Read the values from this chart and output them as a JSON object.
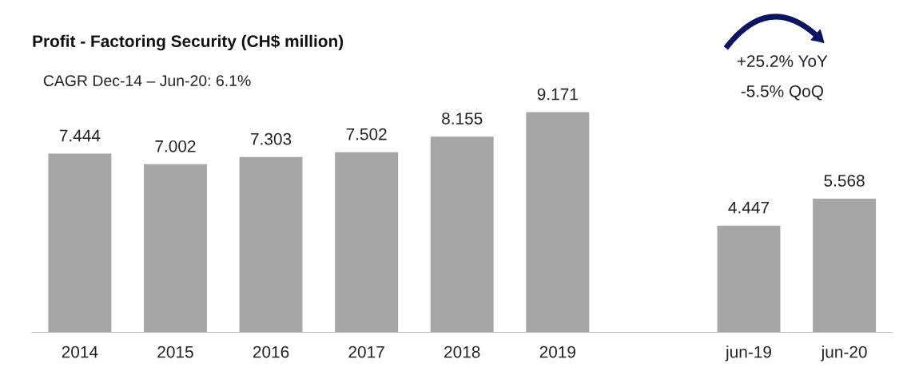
{
  "chart_data": {
    "type": "bar",
    "title": "Profit - Factoring Security (CH$ million)",
    "categories": [
      "2014",
      "2015",
      "2016",
      "2017",
      "2018",
      "2019",
      null,
      "jun-19",
      "jun-20"
    ],
    "values": [
      7.444,
      7.002,
      7.303,
      7.502,
      8.155,
      9.171,
      null,
      4.447,
      5.568
    ],
    "color": "#a6a6a6",
    "data_labels": true,
    "tick_labels": "x",
    "grid": false,
    "legend": false,
    "annotations": [
      "CAGR Dec-14 – Jun-20: 6.1%",
      "+25.2% YoY",
      "-5.5% QoQ"
    ]
  }
}
